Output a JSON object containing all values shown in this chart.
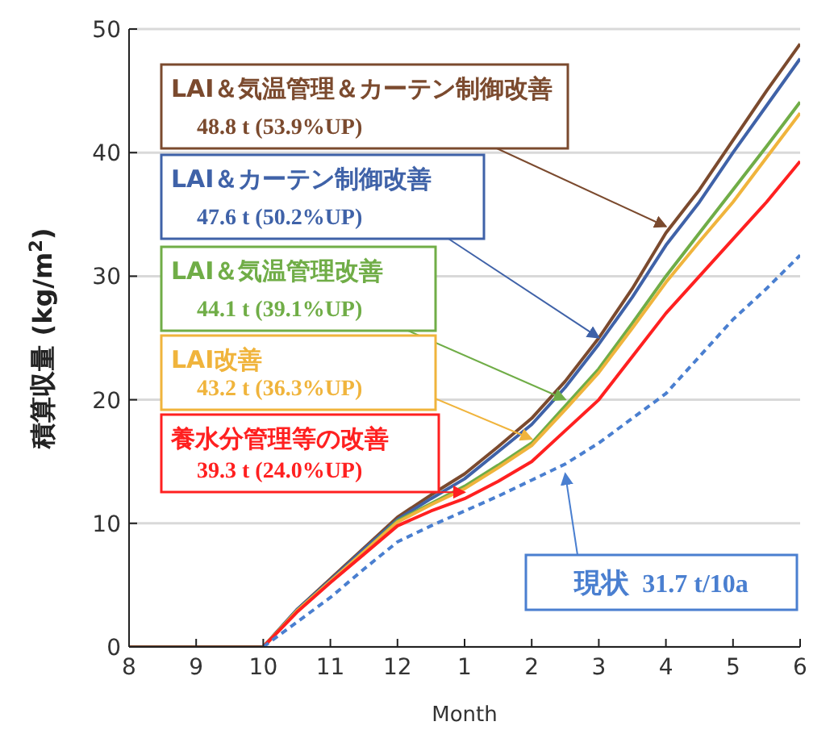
{
  "chart_data": {
    "type": "line",
    "xlabel": "Month",
    "ylabel": "積算収量 (kg/m$^{2}$)",
    "categories": [
      "8",
      null,
      "9",
      null,
      "10",
      null,
      "11",
      null,
      "12",
      null,
      "1",
      null,
      "2",
      null,
      "3",
      null,
      "4",
      null,
      "5",
      null,
      "6"
    ],
    "ylim": [
      0,
      50
    ],
    "yticks": [
      0,
      10,
      20,
      30,
      40,
      50
    ],
    "grid": "y",
    "legend": false,
    "marker": "none",
    "series": [
      {
        "name": "LAI＆気温管理＆カーテン制御改善",
        "color": "#7b4a2e",
        "values": [
          0,
          0,
          0,
          0,
          0,
          3,
          5.5,
          8,
          10.5,
          12.3,
          14,
          16.2,
          18.5,
          21.5,
          25,
          29,
          33.5,
          37,
          41,
          45,
          48.8
        ]
      },
      {
        "name": "LAI＆カーテン制御改善",
        "color": "#3f62a8",
        "values": [
          null,
          null,
          null,
          null,
          0,
          3,
          5.4,
          7.9,
          10.3,
          12,
          13.6,
          15.8,
          18,
          21,
          24.5,
          28.3,
          32.5,
          36,
          40,
          43.8,
          47.6
        ]
      },
      {
        "name": "LAI＆気温管理改善",
        "color": "#70ad47",
        "values": [
          null,
          null,
          null,
          null,
          0,
          2.9,
          5.3,
          7.7,
          10.2,
          11.6,
          13,
          14.7,
          16.5,
          19.5,
          22.5,
          26.2,
          30,
          33.5,
          37,
          40.5,
          44.1
        ]
      },
      {
        "name": "LAI改善",
        "color": "#f0b43c",
        "values": [
          null,
          null,
          null,
          null,
          0,
          2.9,
          5.3,
          7.7,
          10.1,
          11.5,
          12.8,
          14.5,
          16.3,
          19.2,
          22.2,
          25.8,
          29.5,
          32.8,
          36,
          39.6,
          43.2
        ]
      },
      {
        "name": "養水分管理等の改善",
        "color": "#ff2020",
        "values": [
          null,
          null,
          null,
          null,
          0,
          2.8,
          5.2,
          7.5,
          9.8,
          11,
          12,
          13.4,
          15,
          17.5,
          20,
          23.5,
          27,
          30,
          33,
          36,
          39.3
        ]
      },
      {
        "name": "現状",
        "color": "#4a7fd0",
        "line_style": "dashed",
        "values": [
          null,
          null,
          null,
          null,
          0,
          2,
          4,
          6.3,
          8.5,
          9.8,
          11,
          12.2,
          13.5,
          14.8,
          16.5,
          18.5,
          20.5,
          23.5,
          26.5,
          29,
          31.7
        ]
      }
    ],
    "annotations": [
      "48.8 t (53.9%UP)",
      "47.6 t (50.2%UP)",
      "44.1 t (39.1%UP)",
      "43.2 t (36.3%UP)",
      "39.3 t (24.0%UP)",
      "31.7 t/10a"
    ]
  }
}
